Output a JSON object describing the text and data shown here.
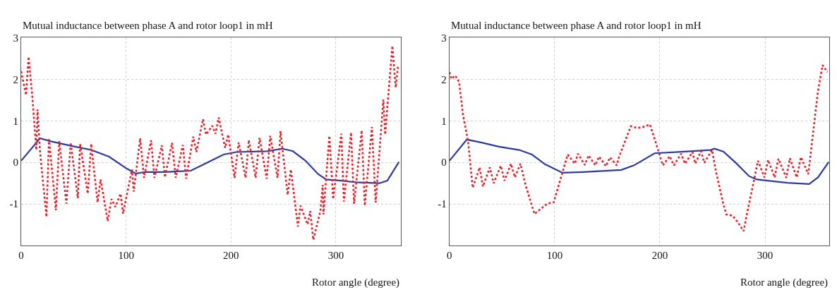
{
  "chart_data": [
    {
      "type": "line",
      "title": "Mutual inductance between phase A and rotor loop1 in mH",
      "xlabel": "Rotor angle (degree)",
      "xlim": [
        0,
        362
      ],
      "ylim": [
        -2,
        3
      ],
      "xticks": [
        0,
        100,
        200,
        300
      ],
      "yticks": [
        -1,
        0,
        1,
        2,
        3
      ],
      "grid": true,
      "series": [
        {
          "color": "#2b3a9c",
          "line_style": "solid",
          "x": [
            0,
            18,
            27.7,
            47.2,
            66.7,
            83.7,
            100.7,
            109.3,
            117.8,
            137.2,
            161.6,
            176,
            193,
            205,
            234.5,
            249,
            259,
            271,
            283,
            290.7,
            305,
            319.7,
            341.6,
            349,
            360
          ],
          "values": [
            0.04,
            0.58,
            0.51,
            0.4,
            0.3,
            0.14,
            -0.15,
            -0.27,
            -0.23,
            -0.23,
            -0.2,
            -0.02,
            0.19,
            0.25,
            0.27,
            0.33,
            0.27,
            0.04,
            -0.28,
            -0.41,
            -0.44,
            -0.48,
            -0.5,
            -0.44,
            0.01
          ]
        },
        {
          "color": "#e8202a",
          "line_style": "dotted",
          "x": [
            0,
            4.6,
            7.1,
            10.7,
            14.4,
            15.6,
            18,
            24.1,
            26.5,
            33.1,
            36.3,
            43.1,
            47.2,
            54,
            56.2,
            63.5,
            66.7,
            72.8,
            75.7,
            82.5,
            86.1,
            89.8,
            94.7,
            97.1,
            105.6,
            107.3,
            113.4,
            117.1,
            123.8,
            127,
            134.1,
            137,
            143.8,
            147.3,
            154.1,
            157.2,
            164,
            167,
            173.3,
            176.2,
            182.2,
            185.2,
            188.3,
            194.4,
            197.3,
            203.4,
            207.3,
            213.9,
            217,
            223.5,
            227.2,
            234,
            237.4,
            244.3,
            247.2,
            254,
            257,
            263.8,
            266.2,
            273,
            275.5,
            278.4,
            285.2,
            287.4,
            288.1,
            293.7,
            297.4,
            305.1,
            307.6,
            314.4,
            317.3,
            324.6,
            327.5,
            334.3,
            337.9,
            345.2,
            346.9,
            353.8,
            357,
            359.1
          ],
          "values": [
            2.19,
            1.62,
            2.54,
            1.56,
            0.3,
            1.27,
            0.25,
            -1.31,
            0.56,
            -1.15,
            0.51,
            -0.99,
            0.48,
            -0.86,
            0.45,
            -0.75,
            0.45,
            -0.96,
            -0.41,
            -1.41,
            -0.88,
            -1.07,
            -0.75,
            -1.23,
            -0.17,
            -0.7,
            0.58,
            -0.37,
            0.53,
            -0.37,
            0.41,
            -0.36,
            0.47,
            -0.37,
            0.42,
            -0.39,
            0.62,
            0.25,
            1.04,
            0.67,
            0.88,
            0.69,
            1.08,
            0.35,
            0.67,
            -0.37,
            0.48,
            -0.37,
            0.54,
            -0.37,
            0.59,
            -0.39,
            0.64,
            -0.37,
            0.75,
            -0.78,
            -0.17,
            -1.54,
            -1.04,
            -1.49,
            -1.17,
            -1.86,
            -1.17,
            -0.54,
            -1.25,
            0.64,
            -0.88,
            0.69,
            -0.94,
            0.72,
            -0.99,
            0.77,
            -1.04,
            0.85,
            -0.96,
            1.51,
            0.67,
            2.8,
            1.8,
            2.3
          ]
        }
      ]
    },
    {
      "type": "line",
      "title": "Mutual inductance between phase A and rotor loop1 in mH",
      "xlabel": "Rotor angle (degree)",
      "xlim": [
        0,
        361
      ],
      "ylim": [
        -2,
        3
      ],
      "xticks": [
        0,
        100,
        200,
        300
      ],
      "yticks": [
        -1,
        0,
        1,
        2,
        3
      ],
      "grid": true,
      "series": [
        {
          "color": "#2b3a9c",
          "line_style": "solid",
          "x": [
            0,
            16.5,
            29.9,
            46.9,
            66.3,
            78.4,
            90.5,
            107.5,
            127,
            163.4,
            175.5,
            195,
            224,
            248.4,
            252,
            260.5,
            272.6,
            284.8,
            292.1,
            321.2,
            341.9,
            350.3,
            360.5
          ],
          "values": [
            0.04,
            0.55,
            0.48,
            0.38,
            0.3,
            0.19,
            -0.04,
            -0.25,
            -0.23,
            -0.18,
            -0.07,
            0.22,
            0.26,
            0.3,
            0.33,
            0.26,
            -0.02,
            -0.33,
            -0.41,
            -0.49,
            -0.52,
            -0.36,
            0.01
          ]
        },
        {
          "color": "#e8202a",
          "line_style": "dotted",
          "x": [
            0,
            1.9,
            5.6,
            9.2,
            12.9,
            17.7,
            22.1,
            28.7,
            31.8,
            38.4,
            42,
            48.8,
            52.4,
            58.5,
            62.2,
            67.5,
            72.3,
            80.8,
            93,
            99.1,
            112.4,
            119.2,
            122.1,
            128.7,
            132.3,
            138.6,
            142.3,
            148.8,
            152.5,
            159,
            161,
            172.4,
            178,
            182.8,
            190.6,
            196.1,
            202.8,
            209.3,
            213.4,
            220.2,
            223.9,
            231,
            233.6,
            239.1,
            242.3,
            249.6,
            253.4,
            260.5,
            263.2,
            269.2,
            274.1,
            279.6,
            282.4,
            289.9,
            293.3,
            299.4,
            302.9,
            309.1,
            312.7,
            320.2,
            323.6,
            330.1,
            334.1,
            341.1,
            350.3,
            354.7,
            359.3
          ],
          "values": [
            2.17,
            2.01,
            2.09,
            1.93,
            1.14,
            0.51,
            -0.61,
            -0.12,
            -0.58,
            -0.12,
            -0.5,
            -0.08,
            -0.44,
            -0.03,
            -0.36,
            -0.03,
            -0.54,
            -1.24,
            -0.99,
            -0.96,
            0.19,
            -0.03,
            0.21,
            -0.06,
            0.17,
            -0.07,
            0.14,
            -0.09,
            0.12,
            -0.07,
            0.12,
            0.87,
            0.83,
            0.84,
            0.91,
            0.48,
            -0.07,
            0.15,
            -0.07,
            0.21,
            -0.03,
            0.25,
            -0.03,
            0.27,
            -0.01,
            0.3,
            -0.23,
            -1.02,
            -1.25,
            -1.28,
            -1.44,
            -1.65,
            -1.28,
            -0.38,
            0.04,
            -0.36,
            0.06,
            -0.36,
            0.09,
            -0.37,
            0.1,
            -0.36,
            0.13,
            -0.28,
            1.72,
            2.34,
            2.17
          ]
        }
      ]
    }
  ]
}
